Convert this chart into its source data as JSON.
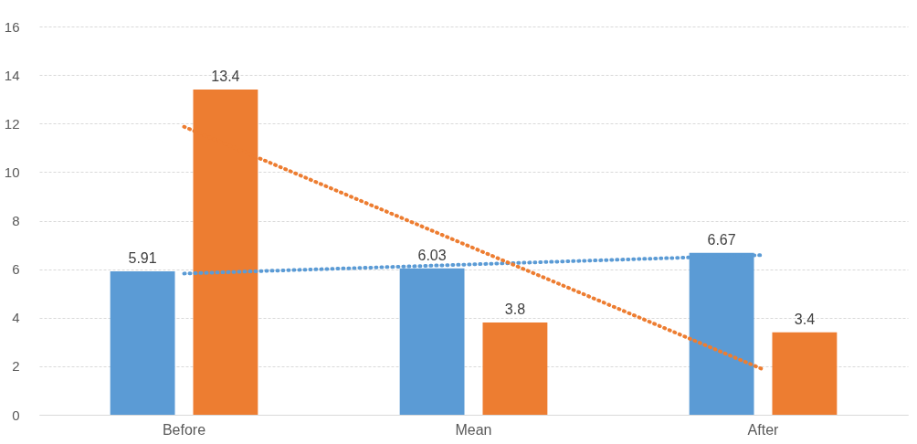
{
  "chart_data": {
    "type": "bar",
    "categories": [
      "Before",
      "Mean",
      "After"
    ],
    "series": [
      {
        "color": "#5b9bd5",
        "values": [
          5.91,
          6.03,
          6.67
        ],
        "value_labels": [
          "5.91",
          "6.03",
          "6.67"
        ]
      },
      {
        "color": "#ed7d31",
        "values": [
          13.4,
          3.8,
          3.4
        ],
        "value_labels": [
          "13.4",
          "3.8",
          "3.4"
        ]
      },
      {
        "type": "line",
        "color": "#5b9bd5",
        "x": [
          "Before",
          "After"
        ],
        "values": [
          5.82,
          6.58
        ],
        "line_style": "dotted"
      },
      {
        "type": "line",
        "color": "#ed7d31",
        "x": [
          "Before",
          "After"
        ],
        "values": [
          11.87,
          1.87
        ],
        "line_style": "dotted"
      }
    ],
    "ylim": [
      0,
      16
    ],
    "yticks": [
      0,
      2,
      4,
      6,
      8,
      10,
      12,
      14,
      16
    ],
    "grid": "y"
  }
}
